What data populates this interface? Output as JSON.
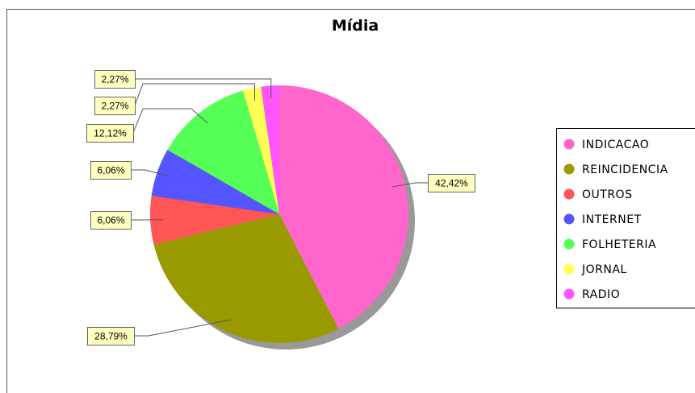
{
  "chart_data": {
    "type": "pie",
    "title": "Mídia",
    "categories": [
      "INDICACAO",
      "REINCIDENCIA",
      "OUTROS",
      "INTERNET",
      "FOLHETERIA",
      "JORNAL",
      "RADIO"
    ],
    "values": [
      42.42,
      28.79,
      6.06,
      6.06,
      12.12,
      2.27,
      2.27
    ],
    "data_labels": [
      "42,42%",
      "28,79%",
      "6,06%",
      "6,06%",
      "12,12%",
      "2,27%",
      "2,27%"
    ],
    "colors": [
      "#ff66cc",
      "#999900",
      "#ff5555",
      "#5555ff",
      "#55ff55",
      "#ffff55",
      "#ff55ff"
    ],
    "start_angle_deg": 90,
    "direction": "clockwise",
    "legend_position": "right",
    "grid": false
  }
}
